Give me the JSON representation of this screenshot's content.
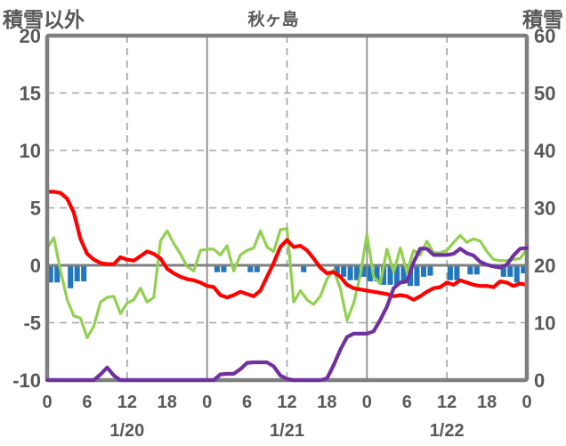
{
  "header": {
    "left_axis_title": "積雪以外",
    "title": "秋ヶ島",
    "right_axis_title": "積雪"
  },
  "colors": {
    "red": "#ff0000",
    "green": "#92d050",
    "purple": "#7030a0",
    "blue": "#2176be",
    "border": "#7f7f7f",
    "grid": "#a6a6a6",
    "grid_solid": "#8c8c8c",
    "zero_line": "#808080",
    "text": "#595959"
  },
  "chart_data": {
    "type": "line+bar",
    "title": "秋ヶ島",
    "x_unit": "hour",
    "x_range": [
      0,
      72
    ],
    "left_axis": {
      "title": "積雪以外",
      "range": [
        -10,
        20
      ],
      "tick_values": [
        20,
        15,
        10,
        5,
        0,
        -5,
        -10
      ],
      "tick_labels": [
        "20",
        "15",
        "10",
        "5",
        "0",
        "-5",
        "-10"
      ]
    },
    "right_axis": {
      "title": "積雪",
      "range": [
        0,
        60
      ],
      "tick_values": [
        60,
        50,
        40,
        30,
        20,
        10,
        0
      ],
      "tick_labels": [
        "60",
        "50",
        "40",
        "30",
        "20",
        "10",
        "0"
      ]
    },
    "x_ticks": {
      "hours": [
        0,
        6,
        12,
        18,
        24,
        30,
        36,
        42,
        48,
        54,
        60,
        66,
        72
      ],
      "labels": [
        "0",
        "6",
        "12",
        "18",
        "0",
        "6",
        "12",
        "18",
        "0",
        "6",
        "12",
        "18",
        "0"
      ]
    },
    "date_labels": [
      {
        "label": "1/20",
        "hour": 12
      },
      {
        "label": "1/21",
        "hour": 36
      },
      {
        "label": "1/22",
        "hour": 60
      }
    ],
    "gridlines": {
      "horizontal_dashed_at_left_values": [
        15,
        10,
        5,
        -5
      ],
      "zero_line_left_value": 0,
      "vertical_dashed_at_hours": [
        12,
        36,
        60
      ],
      "vertical_solid_at_hours": [
        24,
        48
      ]
    },
    "series": [
      {
        "name": "red-line",
        "kind": "line",
        "axis": "left",
        "color": "#ff0000",
        "width": 4.2,
        "values": [
          6.4,
          6.4,
          6.3,
          5.8,
          4.6,
          2.3,
          1.0,
          0.5,
          0.2,
          0.1,
          0.1,
          0.7,
          0.5,
          0.4,
          0.8,
          1.2,
          1.0,
          0.6,
          -0.3,
          -0.7,
          -1.0,
          -1.2,
          -1.3,
          -1.5,
          -1.8,
          -1.9,
          -2.6,
          -2.8,
          -2.6,
          -2.3,
          -2.5,
          -2.7,
          -2.2,
          -1.0,
          0.2,
          1.6,
          2.2,
          1.6,
          1.7,
          1.3,
          0.6,
          -0.2,
          -0.7,
          -0.6,
          -1.0,
          -1.7,
          -2.0,
          -2.1,
          -2.2,
          -2.3,
          -2.4,
          -2.5,
          -2.7,
          -2.6,
          -2.7,
          -3.0,
          -2.7,
          -2.3,
          -2.0,
          -1.9,
          -1.5,
          -1.7,
          -1.3,
          -1.5,
          -1.7,
          -1.8,
          -1.8,
          -1.9,
          -1.4,
          -1.5,
          -1.8,
          -1.6,
          -1.7
        ]
      },
      {
        "name": "green-line",
        "kind": "line",
        "axis": "left",
        "color": "#92d050",
        "width": 3.2,
        "values": [
          1.5,
          2.4,
          -0.5,
          -3.0,
          -4.4,
          -4.6,
          -6.3,
          -5.3,
          -3.2,
          -2.8,
          -2.7,
          -4.2,
          -3.3,
          -3.0,
          -2.0,
          -3.2,
          -2.8,
          2.1,
          3.0,
          1.9,
          1.0,
          -0.1,
          -0.5,
          1.3,
          1.4,
          1.4,
          0.9,
          1.7,
          -0.5,
          0.9,
          1.3,
          1.5,
          3.0,
          1.6,
          1.2,
          3.1,
          3.2,
          -3.2,
          -2.2,
          -3.0,
          -3.4,
          -2.7,
          -1.2,
          -0.4,
          -2.0,
          -4.8,
          -3.3,
          -0.9,
          2.7,
          -1.0,
          -1.6,
          1.4,
          -0.6,
          1.5,
          -0.6,
          1.3,
          0.9,
          2.1,
          1.1,
          1.1,
          1.3,
          2.0,
          2.6,
          2.0,
          2.3,
          2.1,
          1.2,
          0.5,
          0.4,
          0.4,
          0.5,
          0.6,
          1.4
        ]
      },
      {
        "name": "snow-depth-purple-line",
        "kind": "line",
        "axis": "right",
        "color": "#7030a0",
        "width": 4.2,
        "values": [
          0,
          0,
          0,
          0,
          0,
          0,
          0,
          0,
          1.0,
          2.2,
          0.8,
          0,
          0,
          0,
          0,
          0,
          0,
          0,
          0,
          0,
          0,
          0,
          0,
          0,
          0,
          0,
          1.0,
          1.1,
          1.1,
          1.9,
          3.0,
          3.1,
          3.1,
          3.1,
          2.4,
          0.8,
          0.2,
          0,
          0,
          0,
          0,
          0,
          0.3,
          2.6,
          5.3,
          7.5,
          8.1,
          8.1,
          8.1,
          8.5,
          10.5,
          12.8,
          16.0,
          17.0,
          17.2,
          20.5,
          22.9,
          22.9,
          21.8,
          21.8,
          21.8,
          22.0,
          22.9,
          22.1,
          21.7,
          20.6,
          20.1,
          19.8,
          19.6,
          20.1,
          21.7,
          22.9,
          23.0
        ]
      },
      {
        "name": "blue-bars",
        "kind": "bar",
        "axis": "left",
        "color": "#2176be",
        "values": [
          -1.5,
          -1.5,
          0,
          -2.0,
          -1.4,
          -1.4,
          0,
          0,
          0,
          0,
          0,
          0,
          0,
          0,
          0,
          0,
          0,
          0,
          0,
          0,
          0,
          0,
          0,
          0,
          0,
          -0.6,
          -0.6,
          0,
          0,
          0,
          -0.6,
          -0.6,
          0,
          0,
          0,
          0,
          0,
          0,
          -0.6,
          0,
          0,
          0,
          0,
          -0.8,
          -1.0,
          -1.3,
          -1.3,
          -1.0,
          -1.4,
          -1.4,
          -1.7,
          -1.7,
          -1.8,
          -1.6,
          -1.8,
          -1.8,
          -1.0,
          -0.9,
          0,
          0,
          -1.3,
          -1.3,
          0,
          -0.8,
          -0.8,
          0,
          0,
          0,
          -1.0,
          -1.0,
          -1.5,
          -0.7
        ]
      }
    ]
  }
}
